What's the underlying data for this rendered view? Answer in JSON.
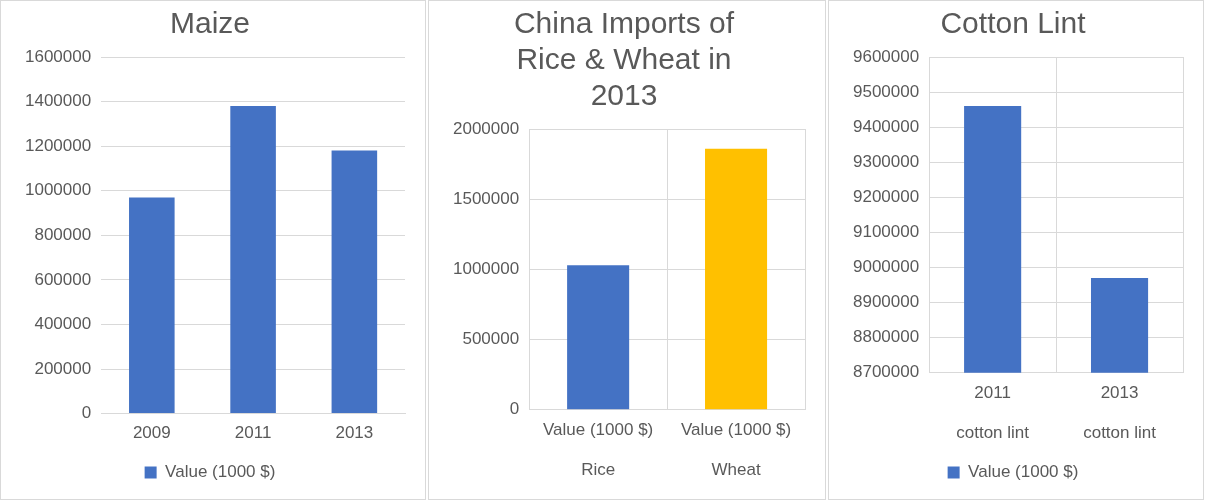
{
  "chart_data": [
    {
      "type": "bar",
      "title": "Maize",
      "categories": [
        "2009",
        "2011",
        "2013"
      ],
      "series": [
        {
          "name": "Value (1000 $)",
          "color": "#4472c4",
          "values": [
            970000,
            1380000,
            1180000
          ]
        }
      ],
      "ylim": [
        0,
        1600000
      ],
      "yticks": [
        0,
        200000,
        400000,
        600000,
        800000,
        1000000,
        1200000,
        1400000,
        1600000
      ],
      "grid": "y",
      "legend": "bottom"
    },
    {
      "type": "bar",
      "title": "China Imports of Rice & Wheat in 2013",
      "categories": [
        "Value (1000 $)",
        "Value (1000 $)"
      ],
      "series": [
        {
          "colors": [
            "#4472c4",
            "#ffc000"
          ],
          "values": [
            1030000,
            1860000
          ]
        }
      ],
      "annotations": [
        "Rice",
        "Wheat"
      ],
      "ylim": [
        0,
        2000000
      ],
      "yticks": [
        0,
        500000,
        1000000,
        1500000,
        2000000
      ],
      "grid": "y"
    },
    {
      "type": "bar",
      "title": "Cotton Lint",
      "categories": [
        "2011",
        "2013"
      ],
      "series": [
        {
          "name": "Value (1000 $)",
          "color": "#4472c4",
          "values": [
            9460000,
            8970000
          ]
        }
      ],
      "annotations": [
        "cotton lint",
        "cotton lint"
      ],
      "ylim": [
        8700000,
        9600000
      ],
      "yticks": [
        8700000,
        8800000,
        8900000,
        9000000,
        9100000,
        9200000,
        9300000,
        9400000,
        9500000,
        9600000
      ],
      "grid": "y",
      "legend": "bottom"
    }
  ]
}
